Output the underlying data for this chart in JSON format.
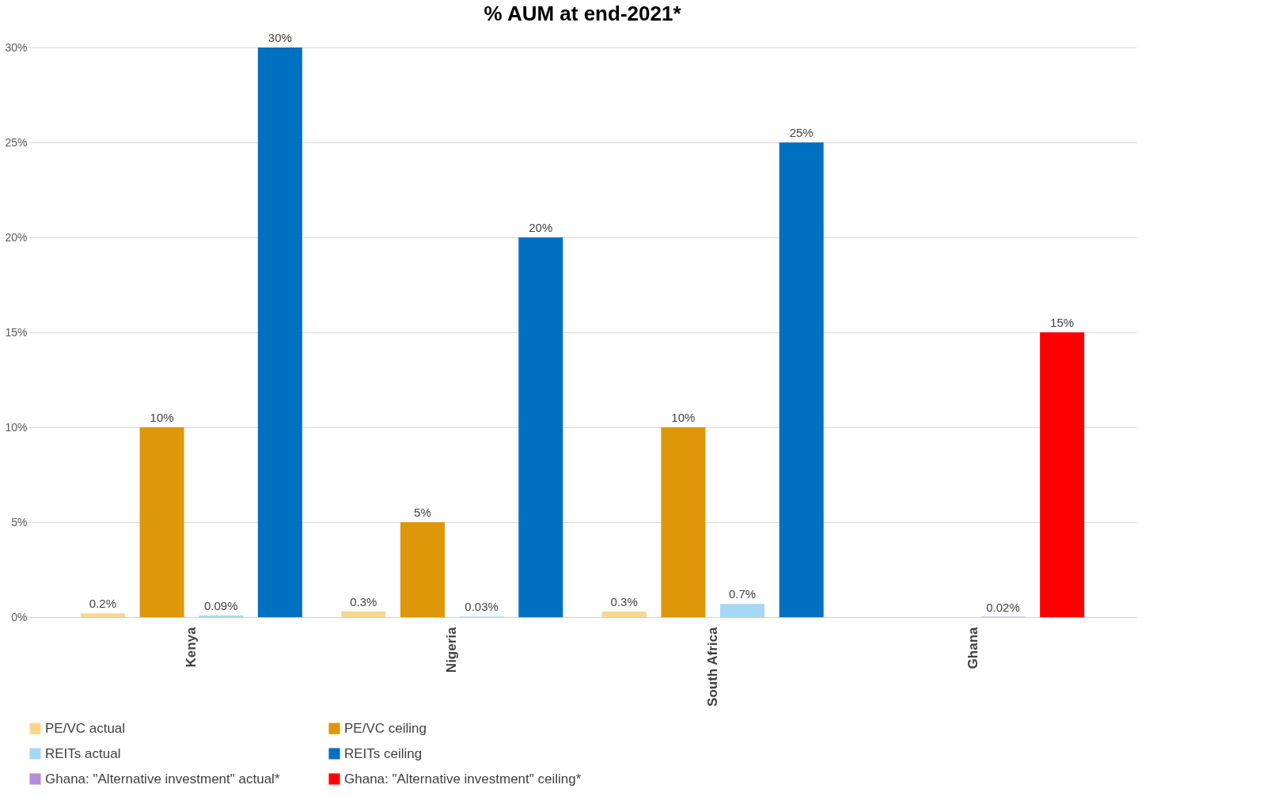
{
  "chart_data": {
    "type": "bar",
    "title": "% AUM at end-2021*",
    "categories": [
      "Kenya",
      "Nigeria",
      "South Africa",
      "Ghana"
    ],
    "series": [
      {
        "name": "PE/VC actual",
        "color": "#f9d68f",
        "values": [
          0.2,
          0.3,
          0.3,
          null
        ],
        "value_labels": [
          "0.2%",
          "0.3%",
          "0.3%",
          null
        ]
      },
      {
        "name": "PE/VC ceiling",
        "color": "#dd9708",
        "values": [
          10,
          5,
          10,
          null
        ],
        "value_labels": [
          "10%",
          "5%",
          "10%",
          null
        ]
      },
      {
        "name": "REITs actual",
        "color": "#a6d8f5",
        "values": [
          0.09,
          0.03,
          0.7,
          null
        ],
        "value_labels": [
          "0.09%",
          "0.03%",
          "0.7%",
          null
        ]
      },
      {
        "name": "REITs ceiling",
        "color": "#0070c0",
        "values": [
          30,
          20,
          25,
          null
        ],
        "value_labels": [
          "30%",
          "20%",
          "25%",
          null
        ]
      },
      {
        "name": "Ghana: \"Alternative investment\" actual*",
        "color": "#b48ed6",
        "values": [
          null,
          null,
          null,
          0.02
        ],
        "value_labels": [
          null,
          null,
          null,
          "0.02%"
        ]
      },
      {
        "name": "Ghana: \"Alternative investment\" ceiling*",
        "color": "#ff0000",
        "values": [
          null,
          null,
          null,
          15
        ],
        "value_labels": [
          null,
          null,
          null,
          "15%"
        ]
      }
    ],
    "ylim": [
      0,
      30
    ],
    "yticks": [
      {
        "value": 0,
        "label": "0%"
      },
      {
        "value": 5,
        "label": "5%"
      },
      {
        "value": 10,
        "label": "10%"
      },
      {
        "value": 15,
        "label": "15%"
      },
      {
        "value": 20,
        "label": "20%"
      },
      {
        "value": 25,
        "label": "25%"
      },
      {
        "value": 30,
        "label": "30%"
      }
    ],
    "grid": "y",
    "legend": "bottom"
  }
}
